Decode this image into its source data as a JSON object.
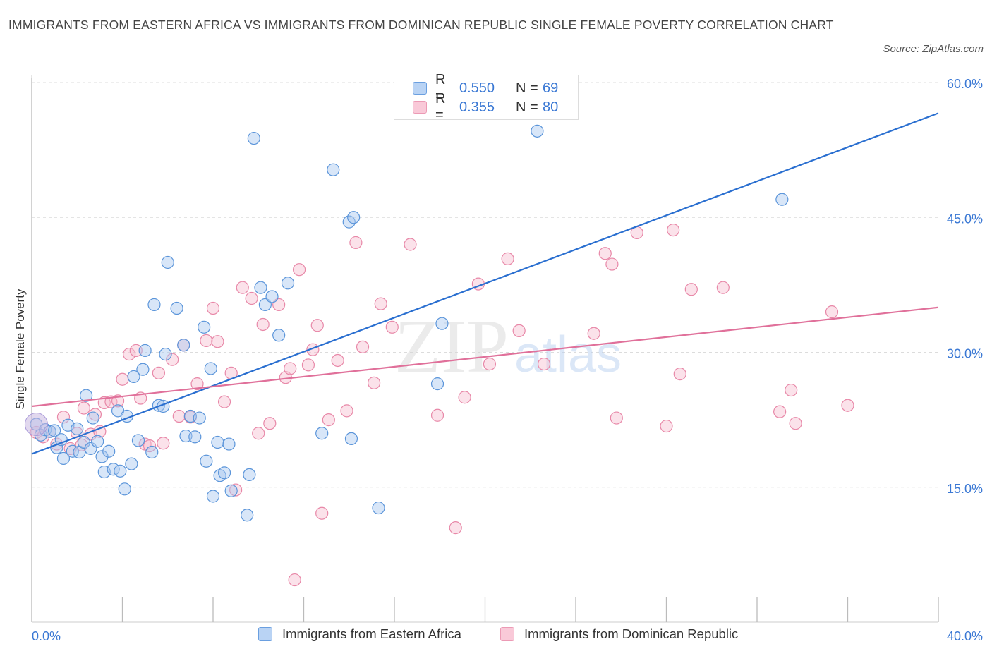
{
  "title": "IMMIGRANTS FROM EASTERN AFRICA VS IMMIGRANTS FROM DOMINICAN REPUBLIC SINGLE FEMALE POVERTY CORRELATION CHART",
  "source": "Source: ZipAtlas.com",
  "watermark": {
    "zip": "ZIP",
    "atlas": "atlas"
  },
  "legend": {
    "r_label": "R =",
    "n_label": "N =",
    "items": [
      {
        "r": "0.550",
        "n": "69"
      },
      {
        "r": "0.355",
        "n": "80"
      }
    ]
  },
  "colors": {
    "blue_fill": "#a8c8f0",
    "blue_stroke": "#5b95da",
    "blue_line": "#2a6fd0",
    "pink_fill": "#f6bfd0",
    "pink_stroke": "#e888a8",
    "pink_line": "#e0709a",
    "tick_label": "#3a78d4",
    "grid": "#dcdcdc"
  },
  "chart_data": {
    "type": "scatter",
    "xlabel": "",
    "ylabel": "Single Female Poverty",
    "xlim": [
      0,
      40
    ],
    "ylim": [
      0,
      60
    ],
    "x_tick_labels": [
      "0.0%",
      "40.0%"
    ],
    "y_ticks": [
      15,
      30,
      45,
      60
    ],
    "y_tick_labels": [
      "15.0%",
      "30.0%",
      "45.0%",
      "60.0%"
    ],
    "grid": true,
    "legend_position": "top-center",
    "series": [
      {
        "name": "Immigrants from Eastern Africa",
        "color": "blue",
        "trend": [
          [
            0,
            18.7
          ],
          [
            40,
            56.6
          ]
        ],
        "points": [
          [
            0.2,
            22.0
          ],
          [
            0.4,
            20.8
          ],
          [
            0.6,
            21.4
          ],
          [
            0.8,
            21.2
          ],
          [
            1.0,
            21.3
          ],
          [
            1.1,
            19.4
          ],
          [
            1.3,
            20.3
          ],
          [
            1.4,
            18.2
          ],
          [
            1.6,
            21.9
          ],
          [
            1.8,
            19.0
          ],
          [
            2.0,
            21.5
          ],
          [
            2.1,
            18.9
          ],
          [
            2.3,
            20.0
          ],
          [
            2.4,
            25.2
          ],
          [
            2.6,
            19.3
          ],
          [
            2.7,
            22.7
          ],
          [
            2.9,
            20.1
          ],
          [
            3.1,
            18.4
          ],
          [
            3.2,
            16.7
          ],
          [
            3.4,
            19.0
          ],
          [
            3.6,
            17.0
          ],
          [
            3.8,
            23.5
          ],
          [
            3.9,
            16.8
          ],
          [
            4.1,
            14.8
          ],
          [
            4.2,
            22.9
          ],
          [
            4.4,
            17.6
          ],
          [
            4.5,
            27.3
          ],
          [
            4.7,
            20.2
          ],
          [
            4.9,
            28.1
          ],
          [
            5.0,
            30.2
          ],
          [
            5.3,
            18.9
          ],
          [
            5.4,
            35.3
          ],
          [
            5.6,
            24.1
          ],
          [
            5.8,
            24.0
          ],
          [
            5.9,
            29.8
          ],
          [
            6.0,
            40.0
          ],
          [
            6.4,
            34.9
          ],
          [
            6.7,
            30.8
          ],
          [
            6.8,
            20.7
          ],
          [
            7.0,
            22.9
          ],
          [
            7.2,
            20.6
          ],
          [
            7.4,
            22.7
          ],
          [
            7.6,
            32.8
          ],
          [
            7.7,
            17.9
          ],
          [
            7.9,
            28.2
          ],
          [
            8.0,
            14.0
          ],
          [
            8.2,
            20.0
          ],
          [
            8.3,
            16.3
          ],
          [
            8.5,
            16.6
          ],
          [
            8.7,
            19.8
          ],
          [
            8.8,
            14.6
          ],
          [
            9.5,
            11.9
          ],
          [
            9.6,
            16.4
          ],
          [
            9.8,
            53.8
          ],
          [
            10.1,
            37.2
          ],
          [
            10.3,
            35.3
          ],
          [
            10.6,
            36.2
          ],
          [
            11.3,
            37.7
          ],
          [
            12.8,
            21.0
          ],
          [
            13.3,
            50.3
          ],
          [
            14.0,
            44.5
          ],
          [
            14.2,
            45.0
          ],
          [
            14.1,
            20.4
          ],
          [
            15.3,
            12.7
          ],
          [
            17.9,
            26.5
          ],
          [
            18.1,
            33.2
          ],
          [
            22.3,
            54.6
          ],
          [
            33.1,
            47.0
          ],
          [
            10.9,
            31.9
          ]
        ]
      },
      {
        "name": "Immigrants from Dominican Republic",
        "color": "pink",
        "trend": [
          [
            0,
            24.0
          ],
          [
            40,
            35.0
          ]
        ],
        "points": [
          [
            0.2,
            21.1
          ],
          [
            0.5,
            20.6
          ],
          [
            0.8,
            21.2
          ],
          [
            1.1,
            19.8
          ],
          [
            1.4,
            22.8
          ],
          [
            1.7,
            19.3
          ],
          [
            2.0,
            21.0
          ],
          [
            2.2,
            19.7
          ],
          [
            2.3,
            23.8
          ],
          [
            2.6,
            20.9
          ],
          [
            2.8,
            23.1
          ],
          [
            3.0,
            21.2
          ],
          [
            3.2,
            24.4
          ],
          [
            3.5,
            24.5
          ],
          [
            3.8,
            24.6
          ],
          [
            4.0,
            27.0
          ],
          [
            4.3,
            29.8
          ],
          [
            4.6,
            30.2
          ],
          [
            4.8,
            24.9
          ],
          [
            5.0,
            19.8
          ],
          [
            5.2,
            19.6
          ],
          [
            5.6,
            27.7
          ],
          [
            5.8,
            19.9
          ],
          [
            6.2,
            29.2
          ],
          [
            6.5,
            22.9
          ],
          [
            6.7,
            30.8
          ],
          [
            7.0,
            22.8
          ],
          [
            7.3,
            26.5
          ],
          [
            7.7,
            31.3
          ],
          [
            8.0,
            34.9
          ],
          [
            8.2,
            31.2
          ],
          [
            8.5,
            24.5
          ],
          [
            8.8,
            27.7
          ],
          [
            9.0,
            14.7
          ],
          [
            9.3,
            37.2
          ],
          [
            9.7,
            36.0
          ],
          [
            10.0,
            21.0
          ],
          [
            10.2,
            33.1
          ],
          [
            10.5,
            22.1
          ],
          [
            10.9,
            35.3
          ],
          [
            11.2,
            27.2
          ],
          [
            11.4,
            28.2
          ],
          [
            11.6,
            4.7
          ],
          [
            11.8,
            39.2
          ],
          [
            12.2,
            28.6
          ],
          [
            12.4,
            30.3
          ],
          [
            12.6,
            33.0
          ],
          [
            12.8,
            12.1
          ],
          [
            13.1,
            22.5
          ],
          [
            13.5,
            29.1
          ],
          [
            13.9,
            23.5
          ],
          [
            14.3,
            42.2
          ],
          [
            14.6,
            30.6
          ],
          [
            15.1,
            26.6
          ],
          [
            15.4,
            35.4
          ],
          [
            15.9,
            32.8
          ],
          [
            16.7,
            42.0
          ],
          [
            17.9,
            23.0
          ],
          [
            18.7,
            10.5
          ],
          [
            19.1,
            25.0
          ],
          [
            19.7,
            37.6
          ],
          [
            20.2,
            28.7
          ],
          [
            21.0,
            40.4
          ],
          [
            21.5,
            32.4
          ],
          [
            22.6,
            28.7
          ],
          [
            24.8,
            32.1
          ],
          [
            25.3,
            41.0
          ],
          [
            25.6,
            39.8
          ],
          [
            25.8,
            22.7
          ],
          [
            26.7,
            43.3
          ],
          [
            28.0,
            21.8
          ],
          [
            28.3,
            43.6
          ],
          [
            28.6,
            27.6
          ],
          [
            29.1,
            37.0
          ],
          [
            30.5,
            37.2
          ],
          [
            33.0,
            23.4
          ],
          [
            33.5,
            25.8
          ],
          [
            33.7,
            22.1
          ],
          [
            35.3,
            34.5
          ],
          [
            36.0,
            24.1
          ]
        ]
      }
    ]
  }
}
